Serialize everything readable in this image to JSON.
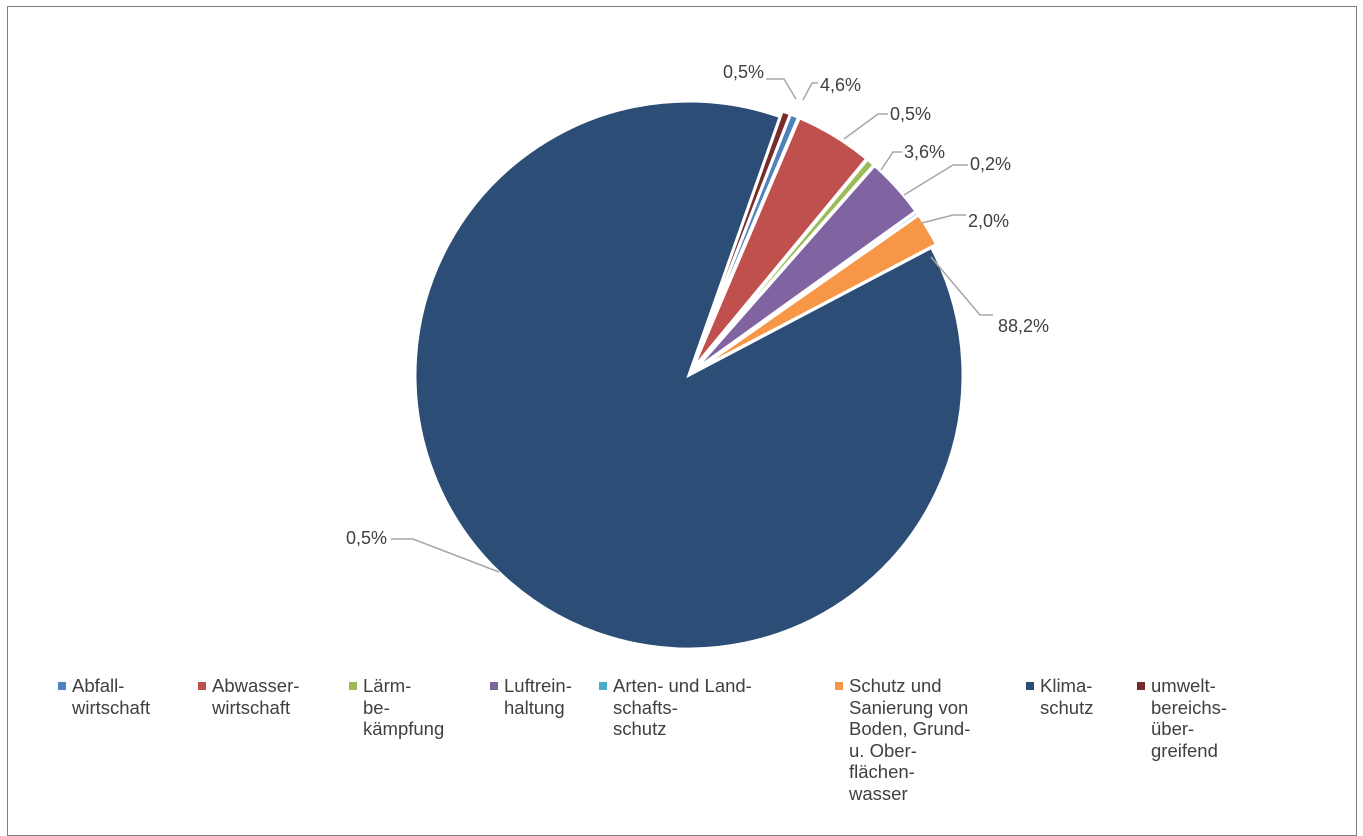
{
  "chart_data": {
    "type": "pie",
    "title": "",
    "slices": [
      {
        "name": "Abfall-\nwirtschaft",
        "value": 0.5,
        "label": "0,5%",
        "color": "#4f81bd"
      },
      {
        "name": "Abwasser-\nwirtschaft",
        "value": 4.6,
        "label": "4,6%",
        "color": "#c0504d"
      },
      {
        "name": "Lärm-\nbe-\nkämpfung",
        "value": 0.5,
        "label": "0,5%",
        "color": "#9bbb59"
      },
      {
        "name": "Luftrein-\nhaltung",
        "value": 3.6,
        "label": "3,6%",
        "color": "#8064a2"
      },
      {
        "name": "Arten- und Land-\nschafts-\nschutz",
        "value": 0.2,
        "label": "0,2%",
        "color": "#4bacc6"
      },
      {
        "name": "Schutz und\nSanierung von\nBoden, Grund-\nu. Ober-\nflächen-\nwasser",
        "value": 2.0,
        "label": "2,0%",
        "color": "#f79646"
      },
      {
        "name": "Klima-\nschutz",
        "value": 88.2,
        "label": "88,2%",
        "color": "#2c4d75"
      },
      {
        "name": "umwelt-\nbereichs-\nüber-\ngreifend",
        "value": 0.5,
        "label": "0,5%",
        "color": "#772c2a"
      }
    ],
    "legend_position": "bottom"
  }
}
